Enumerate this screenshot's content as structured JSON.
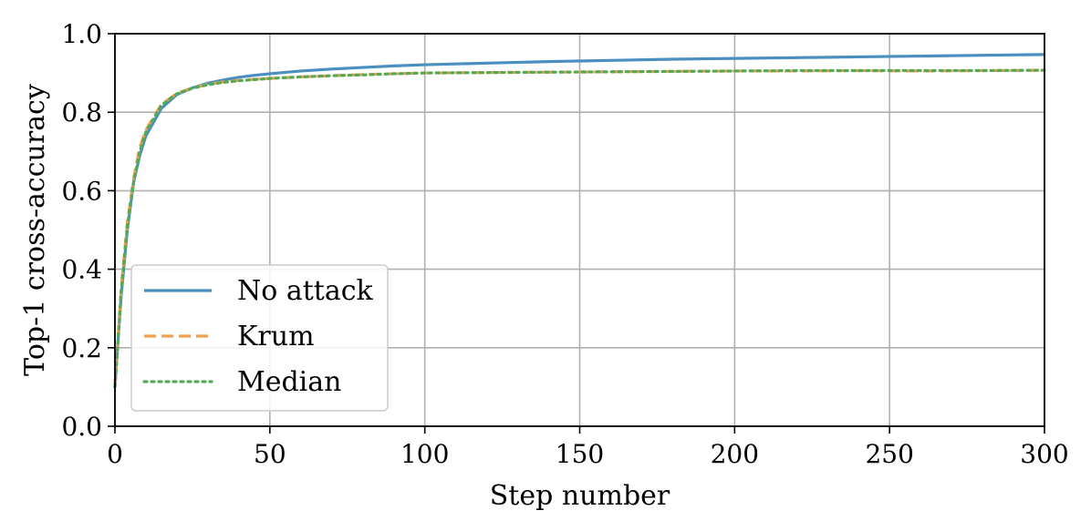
{
  "chart_data": {
    "type": "line",
    "title": "",
    "xlabel": "Step number",
    "ylabel": "Top-1 cross-accuracy",
    "xlim": [
      0,
      300
    ],
    "ylim": [
      0.0,
      1.0
    ],
    "xticks": [
      0,
      50,
      100,
      150,
      200,
      250,
      300
    ],
    "yticks": [
      0.0,
      0.2,
      0.4,
      0.6,
      0.8,
      1.0
    ],
    "xtick_labels": [
      "0",
      "50",
      "100",
      "150",
      "200",
      "250",
      "300"
    ],
    "ytick_labels": [
      "0.0",
      "0.2",
      "0.4",
      "0.6",
      "0.8",
      "1.0"
    ],
    "grid": true,
    "legend_position": "lower-left",
    "series": [
      {
        "name": "No attack",
        "color": "#4a8fbf",
        "style": "solid",
        "x": [
          0,
          2,
          4,
          6,
          8,
          10,
          15,
          20,
          25,
          30,
          35,
          40,
          45,
          50,
          60,
          70,
          80,
          90,
          100,
          120,
          140,
          160,
          180,
          200,
          220,
          240,
          260,
          280,
          300
        ],
        "y": [
          0.1,
          0.33,
          0.5,
          0.62,
          0.69,
          0.74,
          0.81,
          0.845,
          0.862,
          0.874,
          0.882,
          0.889,
          0.894,
          0.898,
          0.905,
          0.91,
          0.914,
          0.918,
          0.921,
          0.925,
          0.929,
          0.932,
          0.935,
          0.937,
          0.939,
          0.941,
          0.943,
          0.945,
          0.947
        ]
      },
      {
        "name": "Krum",
        "color": "#f0a050",
        "style": "dashed",
        "x": [
          0,
          2,
          4,
          6,
          8,
          10,
          15,
          20,
          25,
          30,
          35,
          40,
          45,
          50,
          60,
          70,
          80,
          90,
          100,
          120,
          140,
          160,
          180,
          200,
          220,
          240,
          260,
          280,
          300
        ],
        "y": [
          0.1,
          0.35,
          0.52,
          0.63,
          0.71,
          0.755,
          0.82,
          0.848,
          0.862,
          0.871,
          0.877,
          0.881,
          0.884,
          0.886,
          0.89,
          0.893,
          0.896,
          0.898,
          0.9,
          0.901,
          0.902,
          0.903,
          0.904,
          0.905,
          0.905,
          0.906,
          0.905,
          0.906,
          0.907
        ]
      },
      {
        "name": "Median",
        "color": "#55aa55",
        "style": "dotted",
        "x": [
          0,
          2,
          4,
          6,
          8,
          10,
          15,
          20,
          25,
          30,
          35,
          40,
          45,
          50,
          60,
          70,
          80,
          90,
          100,
          120,
          140,
          160,
          180,
          200,
          220,
          240,
          260,
          280,
          300
        ],
        "y": [
          0.1,
          0.34,
          0.51,
          0.62,
          0.7,
          0.75,
          0.818,
          0.847,
          0.861,
          0.87,
          0.876,
          0.88,
          0.883,
          0.886,
          0.89,
          0.893,
          0.895,
          0.898,
          0.9,
          0.901,
          0.902,
          0.903,
          0.904,
          0.905,
          0.906,
          0.906,
          0.906,
          0.906,
          0.907
        ]
      }
    ]
  }
}
